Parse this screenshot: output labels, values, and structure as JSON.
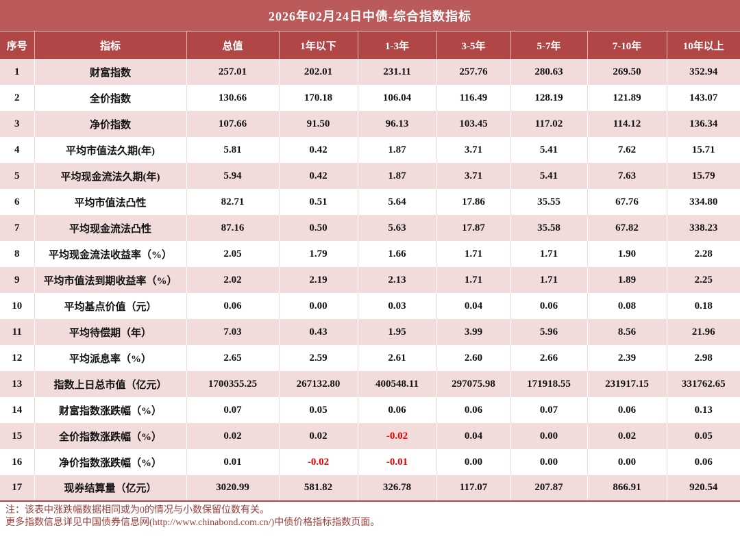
{
  "title": "2026年02月24日中债-综合指数指标",
  "table": {
    "headers": [
      "序号",
      "指标",
      "总值",
      "1年以下",
      "1-3年",
      "3-5年",
      "5-7年",
      "7-10年",
      "10年以上"
    ],
    "rows": [
      {
        "no": "1",
        "indicator": "财富指数",
        "values": [
          "257.01",
          "202.01",
          "231.11",
          "257.76",
          "280.63",
          "269.50",
          "352.94"
        ]
      },
      {
        "no": "2",
        "indicator": "全价指数",
        "values": [
          "130.66",
          "170.18",
          "106.04",
          "116.49",
          "128.19",
          "121.89",
          "143.07"
        ]
      },
      {
        "no": "3",
        "indicator": "净价指数",
        "values": [
          "107.66",
          "91.50",
          "96.13",
          "103.45",
          "117.02",
          "114.12",
          "136.34"
        ]
      },
      {
        "no": "4",
        "indicator": "平均市值法久期(年)",
        "values": [
          "5.81",
          "0.42",
          "1.87",
          "3.71",
          "5.41",
          "7.62",
          "15.71"
        ]
      },
      {
        "no": "5",
        "indicator": "平均现金流法久期(年)",
        "values": [
          "5.94",
          "0.42",
          "1.87",
          "3.71",
          "5.41",
          "7.63",
          "15.79"
        ]
      },
      {
        "no": "6",
        "indicator": "平均市值法凸性",
        "values": [
          "82.71",
          "0.51",
          "5.64",
          "17.86",
          "35.55",
          "67.76",
          "334.80"
        ]
      },
      {
        "no": "7",
        "indicator": "平均现金流法凸性",
        "values": [
          "87.16",
          "0.50",
          "5.63",
          "17.87",
          "35.58",
          "67.82",
          "338.23"
        ]
      },
      {
        "no": "8",
        "indicator": "平均现金流法收益率（%）",
        "values": [
          "2.05",
          "1.79",
          "1.66",
          "1.71",
          "1.71",
          "1.90",
          "2.28"
        ]
      },
      {
        "no": "9",
        "indicator": "平均市值法到期收益率（%）",
        "values": [
          "2.02",
          "2.19",
          "2.13",
          "1.71",
          "1.71",
          "1.89",
          "2.25"
        ]
      },
      {
        "no": "10",
        "indicator": "平均基点价值（元）",
        "values": [
          "0.06",
          "0.00",
          "0.03",
          "0.04",
          "0.06",
          "0.08",
          "0.18"
        ]
      },
      {
        "no": "11",
        "indicator": "平均待偿期（年）",
        "values": [
          "7.03",
          "0.43",
          "1.95",
          "3.99",
          "5.96",
          "8.56",
          "21.96"
        ]
      },
      {
        "no": "12",
        "indicator": "平均派息率（%）",
        "values": [
          "2.65",
          "2.59",
          "2.61",
          "2.60",
          "2.66",
          "2.39",
          "2.98"
        ]
      },
      {
        "no": "13",
        "indicator": "指数上日总市值（亿元）",
        "values": [
          "1700355.25",
          "267132.80",
          "400548.11",
          "297075.98",
          "171918.55",
          "231917.15",
          "331762.65"
        ]
      },
      {
        "no": "14",
        "indicator": "财富指数涨跌幅（%）",
        "values": [
          "0.07",
          "0.05",
          "0.06",
          "0.06",
          "0.07",
          "0.06",
          "0.13"
        ]
      },
      {
        "no": "15",
        "indicator": "全价指数涨跌幅（%）",
        "values": [
          "0.02",
          "0.02",
          "-0.02",
          "0.04",
          "0.00",
          "0.02",
          "0.05"
        ]
      },
      {
        "no": "16",
        "indicator": "净价指数涨跌幅（%）",
        "values": [
          "0.01",
          "-0.02",
          "-0.01",
          "0.00",
          "0.00",
          "0.00",
          "0.06"
        ]
      },
      {
        "no": "17",
        "indicator": "现券结算量（亿元）",
        "values": [
          "3020.99",
          "581.82",
          "326.78",
          "117.07",
          "207.87",
          "866.91",
          "920.54"
        ]
      }
    ]
  },
  "notes": {
    "line1": "注：该表中涨跌幅数据相同或为0的情况与小数保留位数有关。",
    "line2": "更多指数信息详见中国债券信息网(http://www.chinabond.com.cn/)中债价格指标指数页面。"
  },
  "colors": {
    "title_bg": "#BA5A5A",
    "header_bg": "#B04646",
    "row_pink": "#F2DCDB",
    "row_white": "#FFFFFF",
    "negative_text": "#E50000",
    "note_text": "#9A3B3B"
  }
}
